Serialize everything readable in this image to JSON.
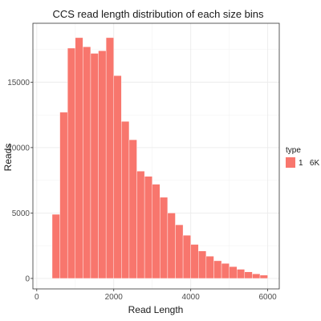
{
  "chart_data": {
    "type": "bar",
    "title": "CCS read length distribution of each size bins",
    "xlabel": "Read Length",
    "ylabel": "Reads",
    "xlim": [
      -100,
      6300
    ],
    "ylim": [
      -800,
      19500
    ],
    "xticks": [
      0,
      2000,
      4000,
      6000
    ],
    "yticks": [
      0,
      5000,
      10000,
      15000
    ],
    "bin_width": 200,
    "bin_starts": [
      400,
      600,
      800,
      1000,
      1200,
      1400,
      1600,
      1800,
      2000,
      2200,
      2400,
      2600,
      2800,
      3000,
      3200,
      3400,
      3600,
      3800,
      4000,
      4200,
      4400,
      4600,
      4800,
      5000,
      5200,
      5400,
      5600,
      5800
    ],
    "values": [
      4900,
      12700,
      17600,
      18400,
      17700,
      17200,
      17400,
      18400,
      15500,
      12000,
      10600,
      8200,
      7800,
      7200,
      6200,
      5000,
      4100,
      3300,
      2600,
      2100,
      1700,
      1350,
      1150,
      900,
      700,
      500,
      350,
      250
    ],
    "grid": true,
    "series": [
      {
        "name": "1 6K",
        "color": "#F8766D"
      }
    ],
    "legend": {
      "title": "type",
      "position": "right",
      "entries": [
        "1   6K"
      ]
    }
  }
}
